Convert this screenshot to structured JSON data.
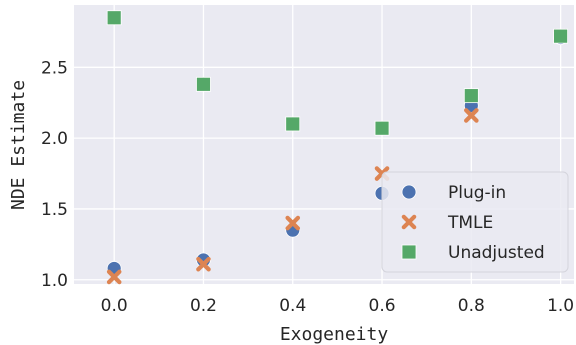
{
  "chart_data": {
    "type": "scatter",
    "xlabel": "Exogeneity",
    "ylabel": "NDE Estimate",
    "xlim": [
      -0.09,
      1.03
    ],
    "ylim": [
      0.97,
      2.94
    ],
    "xticks": [
      0.0,
      0.2,
      0.4,
      0.6,
      0.8,
      1.0
    ],
    "xtick_labels": [
      "0.0",
      "0.2",
      "0.4",
      "0.6",
      "0.8",
      "1.0"
    ],
    "yticks": [
      1.0,
      1.5,
      2.0,
      2.5
    ],
    "ytick_labels": [
      "1.0",
      "1.5",
      "2.0",
      "2.5"
    ],
    "grid": true,
    "legend_position": "lower-right",
    "series": [
      {
        "name": "Plug-in",
        "marker": "circle",
        "color": "#4c72b0",
        "x": [
          0.0,
          0.2,
          0.4,
          0.6,
          0.8,
          1.0
        ],
        "y": [
          1.08,
          1.14,
          1.35,
          1.61,
          2.23,
          2.71
        ]
      },
      {
        "name": "TMLE",
        "marker": "x",
        "color": "#dd8452",
        "x": [
          0.0,
          0.2,
          0.4,
          0.6,
          0.8,
          1.0
        ],
        "y": [
          1.02,
          1.11,
          1.4,
          1.75,
          2.16,
          2.72
        ]
      },
      {
        "name": "Unadjusted",
        "marker": "square",
        "color": "#55a868",
        "x": [
          0.0,
          0.2,
          0.4,
          0.6,
          0.8,
          1.0
        ],
        "y": [
          2.85,
          2.38,
          2.1,
          2.07,
          2.3,
          2.72
        ]
      }
    ]
  }
}
